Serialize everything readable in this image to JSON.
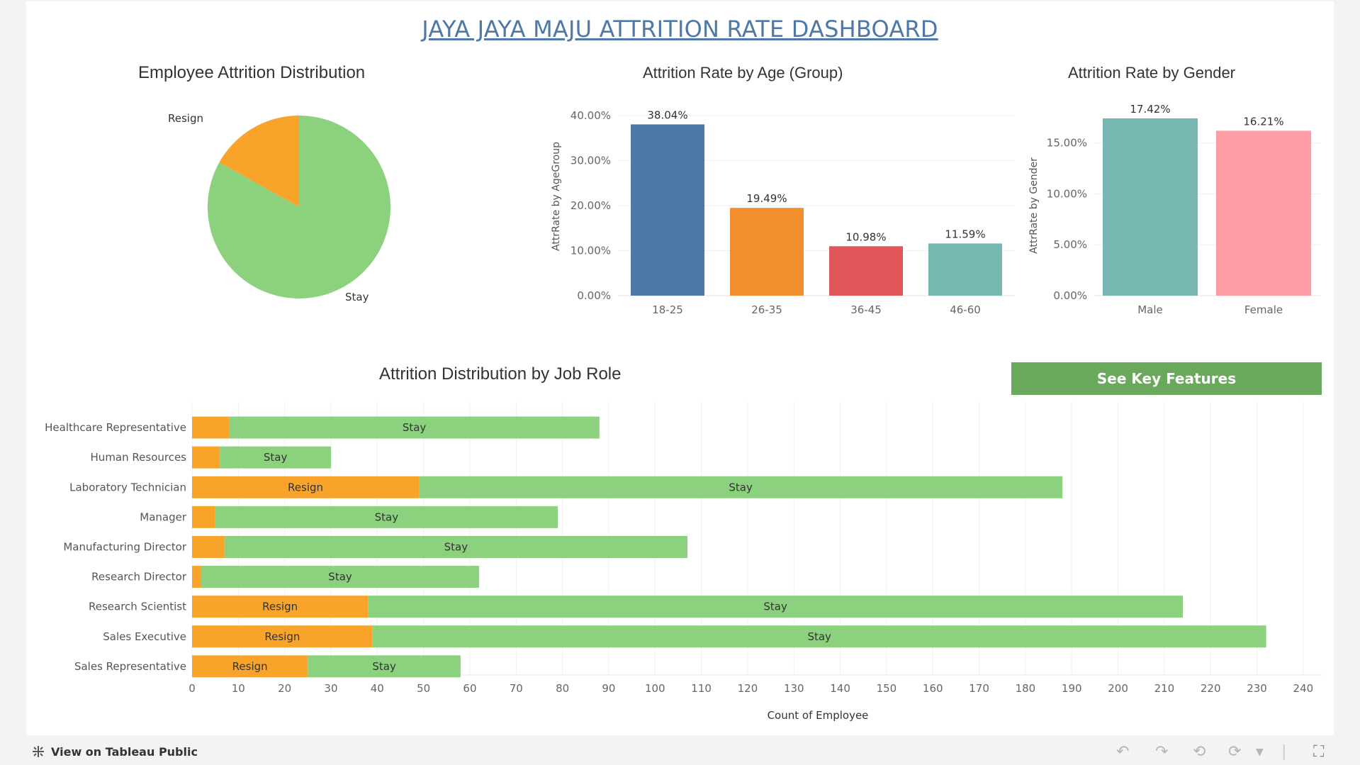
{
  "dashboard": {
    "title": "JAYA JAYA MAJU ATTRITION RATE DASHBOARD"
  },
  "colors": {
    "resign": "#f8a42a",
    "stay": "#8cd17d",
    "title": "#4e79a7",
    "age": [
      "#4e79a7",
      "#f28e2b",
      "#e15759",
      "#76b7b2"
    ],
    "gender": [
      "#76b7b2",
      "#ff9da7"
    ],
    "button": "#6aa85c"
  },
  "pie": {
    "title": "Employee Attrition Distribution",
    "chart_data": {
      "type": "pie",
      "slices": [
        {
          "label": "Resign",
          "fraction": 0.169
        },
        {
          "label": "Stay",
          "fraction": 0.831
        }
      ]
    }
  },
  "age": {
    "title": "Attrition Rate by Age (Group)",
    "chart_data": {
      "type": "bar",
      "categories": [
        "18-25",
        "26-35",
        "36-45",
        "46-60"
      ],
      "values": [
        38.04,
        19.49,
        10.98,
        11.59
      ],
      "value_labels": [
        "38.04%",
        "19.49%",
        "10.98%",
        "11.59%"
      ],
      "ylabel": "AttrRate by AgeGroup",
      "yticks": [
        "40.00%",
        "30.00%",
        "20.00%",
        "10.00%",
        "0.00%"
      ],
      "ytick_values": [
        40,
        30,
        20,
        10,
        0
      ],
      "ylim": [
        0,
        40
      ]
    }
  },
  "gender": {
    "title": "Attrition Rate by Gender",
    "chart_data": {
      "type": "bar",
      "categories": [
        "Male",
        "Female"
      ],
      "values": [
        17.42,
        16.21
      ],
      "value_labels": [
        "17.42%",
        "16.21%"
      ],
      "ylabel": "AttrRate by Gender",
      "yticks": [
        "15.00%",
        "10.00%",
        "5.00%",
        "0.00%"
      ],
      "ytick_values": [
        15,
        10,
        5,
        0
      ],
      "ylim": [
        0,
        17.42
      ]
    }
  },
  "job": {
    "title": "Attrition Distribution by Job Role",
    "chart_data": {
      "type": "bar",
      "orientation": "horizontal-stacked",
      "categories": [
        "Healthcare Representative",
        "Human Resources",
        "Laboratory Technician",
        "Manager",
        "Manufacturing Director",
        "Research Director",
        "Research Scientist",
        "Sales Executive",
        "Sales Representative"
      ],
      "series": [
        {
          "name": "Resign",
          "values": [
            8,
            6,
            49,
            5,
            7,
            2,
            38,
            39,
            25
          ],
          "labels": [
            "",
            "",
            "Resign",
            "",
            "",
            "",
            "Resign",
            "Resign",
            "Resign"
          ]
        },
        {
          "name": "Stay",
          "values": [
            80,
            24,
            139,
            74,
            100,
            60,
            176,
            193,
            33
          ],
          "labels": [
            "Stay",
            "Stay",
            "Stay",
            "Stay",
            "Stay",
            "Stay",
            "Stay",
            "Stay",
            "Stay"
          ]
        }
      ],
      "xlabel": "Count of Employee",
      "xticks": [
        "0",
        "10",
        "20",
        "30",
        "40",
        "50",
        "60",
        "70",
        "80",
        "90",
        "100",
        "110",
        "120",
        "130",
        "140",
        "150",
        "160",
        "170",
        "180",
        "190",
        "200",
        "210",
        "220",
        "230",
        "240"
      ],
      "xlim": [
        0,
        244
      ]
    }
  },
  "button": {
    "label": "See Key Features"
  },
  "footer": {
    "link_label": "View on Tableau Public"
  }
}
